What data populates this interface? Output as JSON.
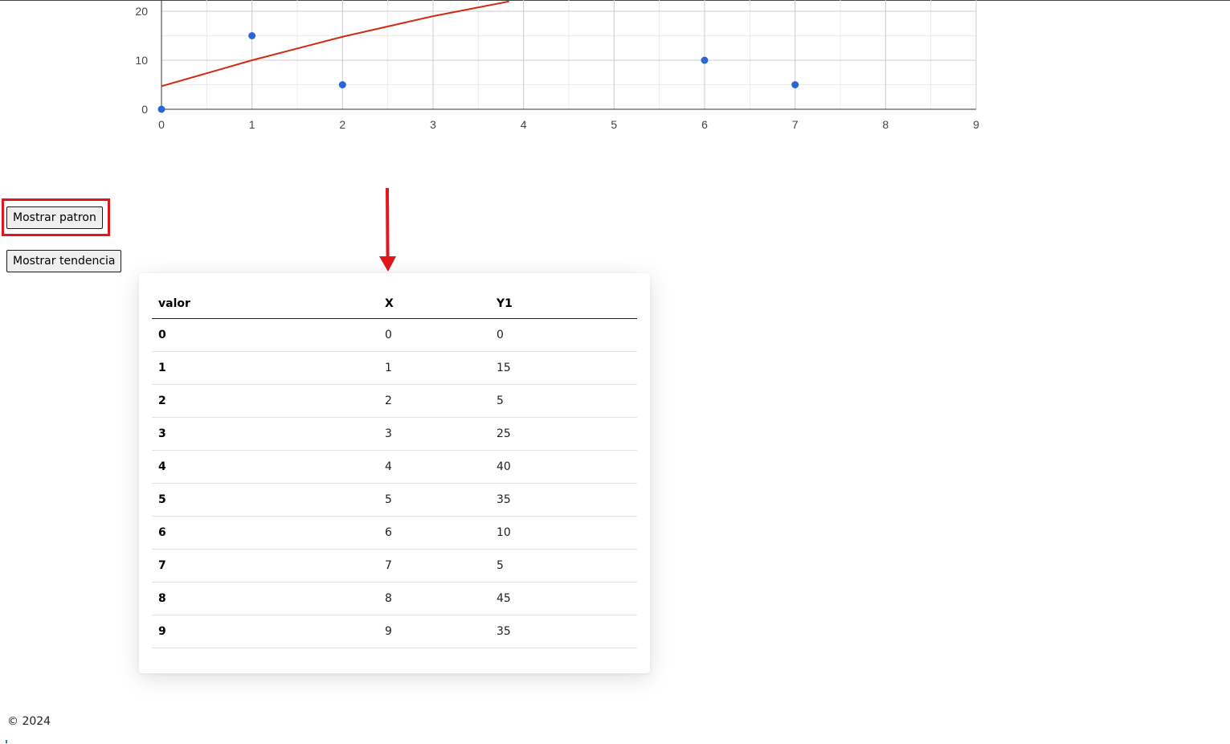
{
  "chart_data": {
    "type": "scatter",
    "x_ticks": [
      0,
      1,
      2,
      3,
      4,
      5,
      6,
      7,
      8,
      9
    ],
    "y_ticks": [
      0,
      10,
      20
    ],
    "xlim": [
      0,
      9
    ],
    "ylim": [
      0,
      20
    ],
    "grid": true,
    "points": [
      {
        "x": 0,
        "y": 0
      },
      {
        "x": 1,
        "y": 15
      },
      {
        "x": 2,
        "y": 5
      },
      {
        "x": 6,
        "y": 10
      },
      {
        "x": 7,
        "y": 5
      }
    ],
    "trend_line": [
      {
        "x": 0,
        "y": 4.7
      },
      {
        "x": 1,
        "y": 10
      },
      {
        "x": 2,
        "y": 14.8
      },
      {
        "x": 3,
        "y": 19
      },
      {
        "x": 3.84,
        "y": 22
      }
    ],
    "colors": {
      "points": "#2b65d6",
      "trend": "#d02a12",
      "grid": "#cccccc",
      "minor_grid": "#ebebeb"
    }
  },
  "buttons": {
    "show_pattern": "Mostrar patron",
    "show_trend": "Mostrar tendencia"
  },
  "table": {
    "headers": [
      "valor",
      "X",
      "Y1"
    ],
    "rows": [
      [
        "0",
        "0",
        "0"
      ],
      [
        "1",
        "1",
        "15"
      ],
      [
        "2",
        "2",
        "5"
      ],
      [
        "3",
        "3",
        "25"
      ],
      [
        "4",
        "4",
        "40"
      ],
      [
        "5",
        "5",
        "35"
      ],
      [
        "6",
        "6",
        "10"
      ],
      [
        "7",
        "7",
        "5"
      ],
      [
        "8",
        "8",
        "45"
      ],
      [
        "9",
        "9",
        "35"
      ]
    ]
  },
  "footer": {
    "text": "© 2024"
  },
  "annotations": {
    "highlight_color": "#e3161b"
  }
}
